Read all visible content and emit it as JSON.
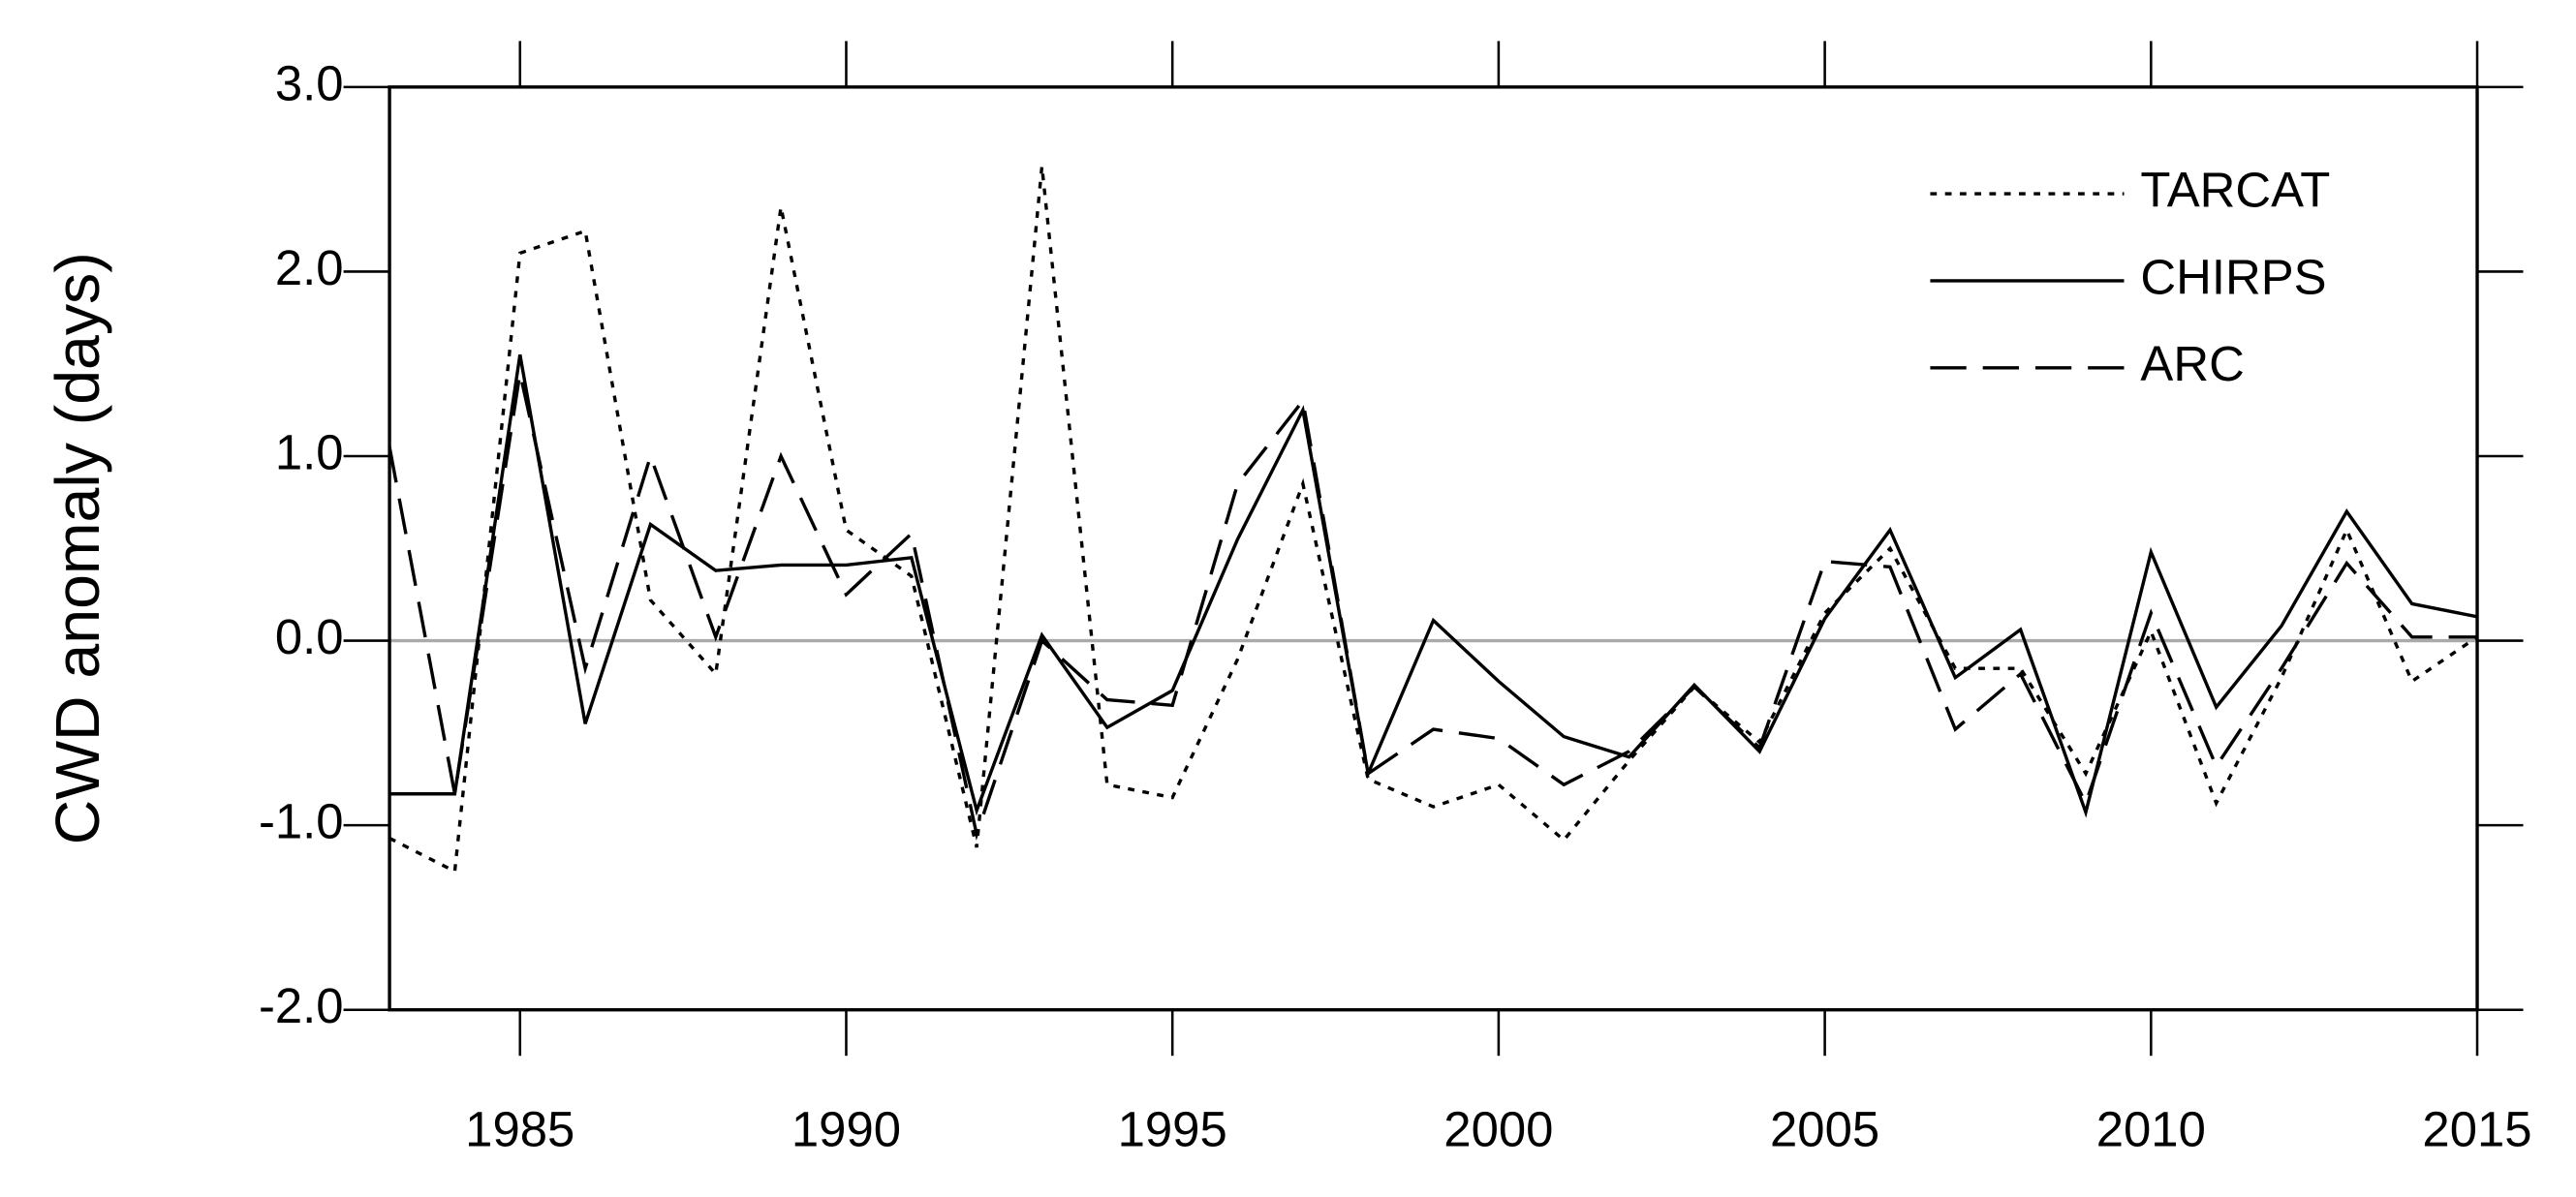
{
  "chart_data": {
    "type": "line",
    "y_label": "CWD anomaly (days)",
    "x": [
      1983,
      1984,
      1985,
      1986,
      1987,
      1988,
      1989,
      1990,
      1991,
      1992,
      1993,
      1994,
      1995,
      1996,
      1997,
      1998,
      1999,
      2000,
      2001,
      2002,
      2003,
      2004,
      2005,
      2006,
      2007,
      2008,
      2009,
      2010,
      2011,
      2012,
      2013,
      2014,
      2015
    ],
    "series": [
      {
        "name": "TARCAT",
        "color": "#000000",
        "dash": "dotted",
        "values": [
          -1.07,
          -1.25,
          2.1,
          2.22,
          0.22,
          -0.18,
          2.35,
          0.6,
          0.35,
          -1.12,
          2.57,
          -0.78,
          -0.85,
          -0.1,
          0.85,
          -0.75,
          -0.9,
          -0.78,
          -1.08,
          -0.65,
          -0.25,
          -0.55,
          0.15,
          0.5,
          -0.15,
          -0.15,
          -0.72,
          0.05,
          -0.88,
          -0.2,
          0.6,
          -0.22,
          0.02
        ]
      },
      {
        "name": "CHIRPS",
        "color": "#000000",
        "dash": "solid",
        "values": [
          -0.83,
          -0.83,
          1.55,
          -0.45,
          0.63,
          0.38,
          0.41,
          0.41,
          0.45,
          -0.92,
          0.03,
          -0.47,
          -0.27,
          0.55,
          1.25,
          -0.72,
          0.11,
          -0.22,
          -0.52,
          -0.63,
          -0.24,
          -0.6,
          0.12,
          0.6,
          -0.2,
          0.06,
          -0.93,
          0.48,
          -0.36,
          0.08,
          0.7,
          0.2,
          0.13
        ]
      },
      {
        "name": "ARC",
        "color": "#000000",
        "dash": "dashed",
        "values": [
          1.05,
          -0.83,
          1.45,
          -0.15,
          1.0,
          0.02,
          1.0,
          0.25,
          0.58,
          -1.05,
          0.0,
          -0.32,
          -0.35,
          0.85,
          1.3,
          -0.72,
          -0.48,
          -0.53,
          -0.78,
          -0.6,
          -0.25,
          -0.58,
          0.43,
          0.4,
          -0.48,
          -0.18,
          -0.88,
          0.15,
          -0.68,
          -0.15,
          0.42,
          0.02,
          0.02
        ]
      }
    ],
    "xlim": [
      1983,
      2015
    ],
    "xticks": [
      1985,
      1990,
      1995,
      2000,
      2005,
      2010,
      2015
    ],
    "ylim": [
      -2,
      3
    ],
    "yticks": [
      {
        "value": -2,
        "label": "-2.0"
      },
      {
        "value": -1,
        "label": "-1.0"
      },
      {
        "value": 0,
        "label": "0.0"
      },
      {
        "value": 1,
        "label": "1.0"
      },
      {
        "value": 2,
        "label": "2.0"
      },
      {
        "value": 3,
        "label": "3.0"
      }
    ],
    "zero_line": true,
    "legend": "upper right"
  }
}
